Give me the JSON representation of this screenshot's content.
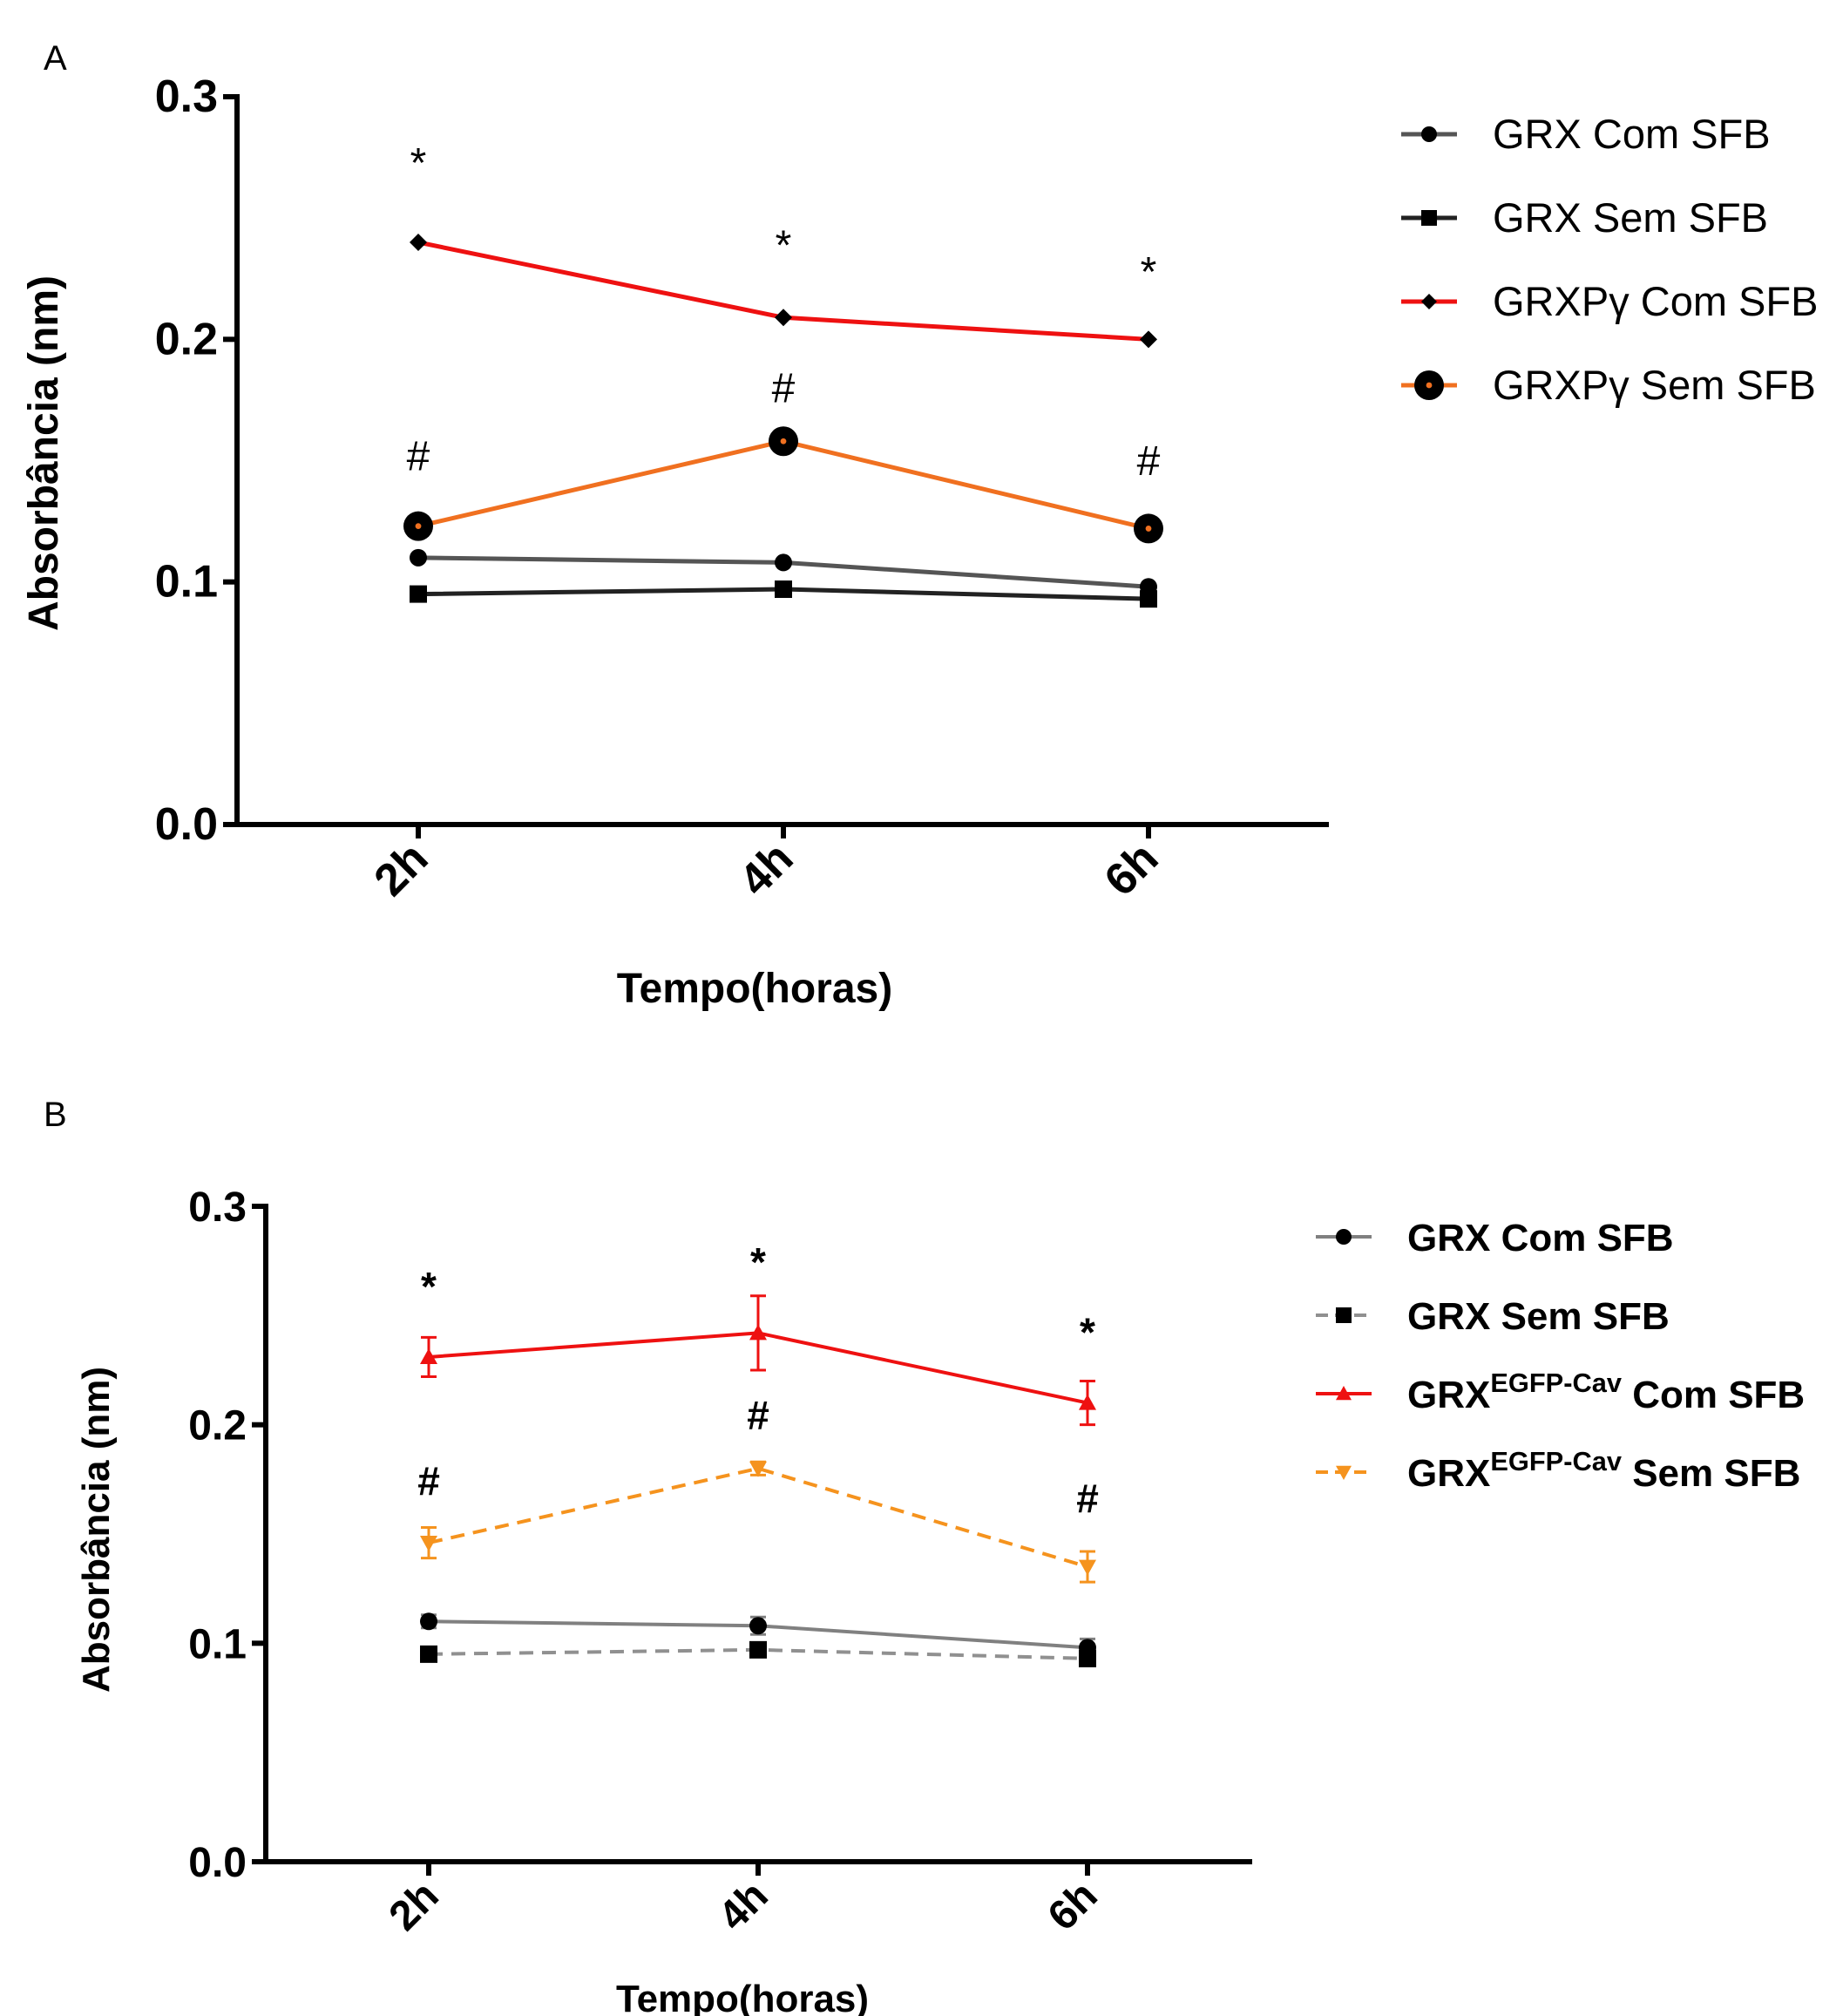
{
  "chart_data": [
    {
      "panel_label": "A",
      "type": "line",
      "categories": [
        "2h",
        "4h",
        "6h"
      ],
      "xlabel": "Tempo(horas)",
      "ylabel": "Absorbância (nm)",
      "ylim": [
        0,
        0.3
      ],
      "yticks": [
        "0.0",
        "0.1",
        "0.2",
        "0.3"
      ],
      "grid": false,
      "legend_position": "right",
      "series": [
        {
          "name": "GRX Com SFB",
          "values": [
            0.11,
            0.108,
            0.098
          ],
          "color": "#555555",
          "marker": "circle",
          "dash": "solid"
        },
        {
          "name": "GRX Sem SFB",
          "values": [
            0.095,
            0.097,
            0.093
          ],
          "color": "#222222",
          "marker": "square",
          "dash": "solid"
        },
        {
          "name": "GRXPγ Com SFB",
          "values": [
            0.24,
            0.209,
            0.2
          ],
          "color": "#ee1111",
          "marker": "diamond",
          "dash": "solid"
        },
        {
          "name": "GRXPγ Sem SFB",
          "values": [
            0.123,
            0.158,
            0.122
          ],
          "color": "#f07020",
          "marker": "ring",
          "dash": "solid"
        }
      ],
      "annotations": [
        {
          "text": "*",
          "x": "2h",
          "y": 0.267
        },
        {
          "text": "*",
          "x": "4h",
          "y": 0.233
        },
        {
          "text": "*",
          "x": "6h",
          "y": 0.222
        },
        {
          "text": "#",
          "x": "2h",
          "y": 0.146
        },
        {
          "text": "#",
          "x": "4h",
          "y": 0.174
        },
        {
          "text": "#",
          "x": "6h",
          "y": 0.144
        }
      ]
    },
    {
      "panel_label": "B",
      "type": "line",
      "categories": [
        "2h",
        "4h",
        "6h"
      ],
      "xlabel": "Tempo(horas)",
      "ylabel": "Absorbância (nm)",
      "ylim": [
        0,
        0.3
      ],
      "yticks": [
        "0.0",
        "0.1",
        "0.2",
        "0.3"
      ],
      "grid": false,
      "legend_position": "right",
      "series": [
        {
          "name_main": "GRX",
          "name_sup": "",
          "name_rest": "Com SFB",
          "values": [
            0.11,
            0.108,
            0.098
          ],
          "errors": [
            0.003,
            0.004,
            0.004
          ],
          "color": "#808080",
          "marker": "circle",
          "dash": "solid"
        },
        {
          "name_main": "GRX",
          "name_sup": "",
          "name_rest": "Sem SFB",
          "values": [
            0.095,
            0.097,
            0.093
          ],
          "errors": [
            0.002,
            0.002,
            0.002
          ],
          "color": "#909090",
          "marker": "square",
          "dash": "dashed"
        },
        {
          "name_main": "GRX",
          "name_sup": "EGFP-Cav",
          "name_rest": "Com SFB",
          "values": [
            0.231,
            0.242,
            0.21
          ],
          "errors": [
            0.009,
            0.017,
            0.01
          ],
          "color": "#ee1111",
          "marker": "triangle-up",
          "dash": "solid"
        },
        {
          "name_main": "GRX",
          "name_sup": "EGFP-Cav",
          "name_rest": "Sem SFB",
          "values": [
            0.146,
            0.18,
            0.135
          ],
          "errors": [
            0.007,
            0.003,
            0.007
          ],
          "color": "#f5931e",
          "marker": "triangle-down",
          "dash": "dashed"
        }
      ],
      "annotations": [
        {
          "text": "*",
          "x": "2h",
          "y": 0.257
        },
        {
          "text": "*",
          "x": "4h",
          "y": 0.268
        },
        {
          "text": "*",
          "x": "6h",
          "y": 0.236
        },
        {
          "text": "#",
          "x": "2h",
          "y": 0.168
        },
        {
          "text": "#",
          "x": "4h",
          "y": 0.198
        },
        {
          "text": "#",
          "x": "6h",
          "y": 0.16
        }
      ]
    }
  ]
}
